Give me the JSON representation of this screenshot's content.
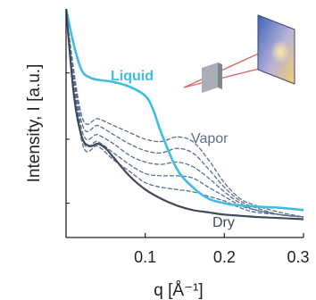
{
  "chart_data": {
    "type": "line",
    "title": "",
    "xlabel": "q [Å⁻¹]",
    "ylabel": "Intensity, I [a.u.]",
    "xlim": [
      0.0,
      0.3
    ],
    "ylim": [
      0,
      1
    ],
    "y_tick_labels_shown": false,
    "x_ticks": [
      {
        "value": 0.1,
        "label": "0.1"
      },
      {
        "value": 0.2,
        "label": "0.2"
      },
      {
        "value": 0.3,
        "label": "0.3"
      }
    ],
    "y_ticks": [
      0.15,
      0.43,
      0.72
    ],
    "grid": false,
    "series": [
      {
        "name": "Liquid",
        "color": "#3fbbe8",
        "style": "solid",
        "x": [
          0.0,
          0.01,
          0.02,
          0.03,
          0.04,
          0.06,
          0.08,
          0.1,
          0.11,
          0.12,
          0.14,
          0.16,
          0.18,
          0.2,
          0.22,
          0.24,
          0.27,
          0.3
        ],
        "y": [
          1.0,
          0.84,
          0.73,
          0.7,
          0.69,
          0.68,
          0.66,
          0.62,
          0.56,
          0.46,
          0.3,
          0.22,
          0.17,
          0.15,
          0.14,
          0.135,
          0.13,
          0.12
        ]
      },
      {
        "name": "Vapor",
        "color": "#5a6e90",
        "style": "dashed",
        "x": [
          0.0,
          0.02,
          0.04,
          0.06,
          0.08,
          0.1,
          0.12,
          0.14,
          0.16,
          0.18,
          0.2,
          0.22,
          0.24,
          0.27,
          0.3
        ],
        "y": [
          0.98,
          0.53,
          0.52,
          0.49,
          0.46,
          0.43,
          0.42,
          0.44,
          0.42,
          0.34,
          0.24,
          0.17,
          0.14,
          0.11,
          0.09
        ]
      },
      {
        "name": "",
        "color": "#5a6e90",
        "style": "dashed",
        "x": [
          0.0,
          0.02,
          0.04,
          0.06,
          0.08,
          0.1,
          0.12,
          0.14,
          0.16,
          0.18,
          0.2,
          0.22,
          0.24,
          0.27,
          0.3
        ],
        "y": [
          0.98,
          0.5,
          0.49,
          0.45,
          0.41,
          0.38,
          0.37,
          0.39,
          0.37,
          0.3,
          0.22,
          0.16,
          0.13,
          0.1,
          0.09
        ]
      },
      {
        "name": "",
        "color": "#5a6e90",
        "style": "dashed",
        "x": [
          0.0,
          0.02,
          0.04,
          0.06,
          0.08,
          0.1,
          0.12,
          0.14,
          0.16,
          0.18,
          0.2,
          0.22,
          0.24,
          0.27,
          0.3
        ],
        "y": [
          0.98,
          0.47,
          0.45,
          0.41,
          0.36,
          0.33,
          0.32,
          0.33,
          0.31,
          0.26,
          0.2,
          0.15,
          0.12,
          0.1,
          0.09
        ]
      },
      {
        "name": "",
        "color": "#5a6e90",
        "style": "dashed",
        "x": [
          0.0,
          0.02,
          0.04,
          0.06,
          0.08,
          0.1,
          0.12,
          0.14,
          0.16,
          0.18,
          0.2,
          0.22,
          0.24,
          0.27,
          0.3
        ],
        "y": [
          0.98,
          0.44,
          0.42,
          0.37,
          0.32,
          0.28,
          0.27,
          0.27,
          0.26,
          0.22,
          0.18,
          0.14,
          0.12,
          0.1,
          0.09
        ]
      },
      {
        "name": "",
        "color": "#5a6e90",
        "style": "dashed",
        "x": [
          0.0,
          0.02,
          0.04,
          0.06,
          0.08,
          0.1,
          0.12,
          0.14,
          0.16,
          0.18,
          0.2,
          0.22,
          0.24,
          0.27,
          0.3
        ],
        "y": [
          0.98,
          0.42,
          0.4,
          0.34,
          0.29,
          0.24,
          0.22,
          0.21,
          0.2,
          0.18,
          0.16,
          0.13,
          0.11,
          0.1,
          0.09
        ]
      },
      {
        "name": "Dry",
        "color": "#3f4a5a",
        "style": "solid",
        "x": [
          0.0,
          0.01,
          0.02,
          0.03,
          0.04,
          0.05,
          0.06,
          0.08,
          0.1,
          0.12,
          0.14,
          0.16,
          0.18,
          0.2,
          0.22,
          0.24,
          0.27,
          0.3
        ],
        "y": [
          1.0,
          0.62,
          0.44,
          0.4,
          0.41,
          0.39,
          0.35,
          0.27,
          0.21,
          0.17,
          0.14,
          0.12,
          0.11,
          0.1,
          0.095,
          0.09,
          0.085,
          0.08
        ]
      }
    ],
    "annotations": [
      {
        "text": "Liquid",
        "color": "#3fbbe8"
      },
      {
        "text": "Vapor",
        "color": "#5a6e90"
      },
      {
        "text": "Dry",
        "color": "#3f4a5a"
      }
    ]
  }
}
